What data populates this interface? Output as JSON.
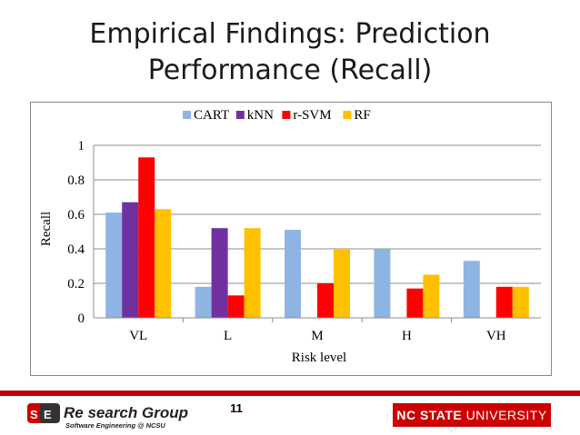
{
  "slide": {
    "title_line1": "Empirical Findings: Prediction",
    "title_line2": "Performance (Recall)",
    "page_number": "11"
  },
  "footer": {
    "research_group_text": "Re search Group",
    "research_group_sub": "Software Engineering @ NCSU",
    "university_bold": "NC STATE",
    "university_rest": " UNIVERSITY"
  },
  "colors": {
    "accent_red": "#c00000"
  },
  "chart_data": {
    "type": "bar",
    "categories": [
      "VL",
      "L",
      "M",
      "H",
      "VH"
    ],
    "series": [
      {
        "name": "CART",
        "color": "#8eb4e3",
        "values": [
          0.61,
          0.18,
          0.51,
          0.4,
          0.33
        ]
      },
      {
        "name": "kNN",
        "color": "#7030a0",
        "values": [
          0.67,
          0.52,
          0.0,
          0.0,
          0.0
        ]
      },
      {
        "name": "r-SVM",
        "color": "#ff0000",
        "values": [
          0.93,
          0.13,
          0.2,
          0.17,
          0.18
        ]
      },
      {
        "name": "RF",
        "color": "#ffc000",
        "values": [
          0.63,
          0.52,
          0.4,
          0.25,
          0.18
        ]
      }
    ],
    "xlabel": "Risk level",
    "ylabel": "Recall",
    "ylim": [
      0,
      1
    ],
    "yticks": [
      "0",
      "0.2",
      "0.4",
      "0.6",
      "0.8",
      "1"
    ],
    "grid": true,
    "legend": "top"
  }
}
